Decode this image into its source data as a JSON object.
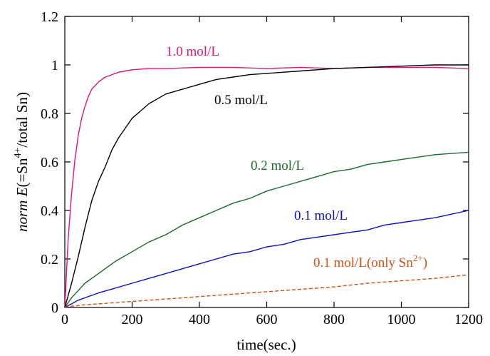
{
  "chart_data": {
    "type": "line",
    "xlabel": "time(sec.)",
    "ylabel_parts": {
      "italic_norm": "norm",
      "italic_E": "E",
      "pre": "(=Sn",
      "sup": "4+",
      "post": "/total Sn)"
    },
    "xlim": [
      0,
      1200
    ],
    "ylim": [
      0,
      1.2
    ],
    "xticks": [
      0,
      200,
      400,
      600,
      800,
      1000,
      1200
    ],
    "yticks": [
      0,
      0.2,
      0.4,
      0.6,
      0.8,
      1,
      1.2
    ],
    "xtick_labels": [
      "0",
      "200",
      "400",
      "600",
      "800",
      "1000",
      "1200"
    ],
    "ytick_labels": [
      "0",
      "0.2",
      "0.4",
      "0.6",
      "0.8",
      "1",
      "1.2"
    ],
    "grid": false,
    "legend": "none (series labelled inline)",
    "series": [
      {
        "name": "1.0 mol/L",
        "color": "#e0147a",
        "dash": "solid",
        "x": [
          0,
          10,
          20,
          30,
          40,
          50,
          60,
          70,
          80,
          100,
          120,
          140,
          160,
          180,
          200,
          250,
          300,
          400,
          500,
          600,
          700,
          800,
          900,
          1000,
          1100,
          1200
        ],
        "y": [
          0,
          0.28,
          0.47,
          0.61,
          0.71,
          0.78,
          0.83,
          0.87,
          0.9,
          0.93,
          0.95,
          0.96,
          0.97,
          0.975,
          0.98,
          0.985,
          0.985,
          0.99,
          0.99,
          0.985,
          0.99,
          0.985,
          0.99,
          0.99,
          0.99,
          0.985
        ]
      },
      {
        "name": "0.5 mol/L",
        "color": "#000000",
        "dash": "solid",
        "x": [
          0,
          20,
          40,
          60,
          80,
          100,
          120,
          140,
          160,
          180,
          200,
          250,
          300,
          350,
          400,
          450,
          500,
          550,
          600,
          650,
          700,
          800,
          900,
          1000,
          1100,
          1200
        ],
        "y": [
          0,
          0.1,
          0.21,
          0.33,
          0.44,
          0.52,
          0.58,
          0.65,
          0.7,
          0.74,
          0.78,
          0.84,
          0.88,
          0.9,
          0.92,
          0.94,
          0.95,
          0.96,
          0.965,
          0.97,
          0.975,
          0.985,
          0.99,
          0.995,
          1.0,
          1.0
        ]
      },
      {
        "name": "0.2 mol/L",
        "color": "#1a6a2a",
        "dash": "solid",
        "x": [
          0,
          20,
          40,
          60,
          80,
          100,
          150,
          200,
          250,
          300,
          350,
          400,
          450,
          500,
          550,
          600,
          650,
          700,
          750,
          800,
          850,
          900,
          950,
          1000,
          1050,
          1100,
          1150,
          1200
        ],
        "y": [
          0,
          0.04,
          0.07,
          0.1,
          0.12,
          0.14,
          0.19,
          0.23,
          0.27,
          0.3,
          0.34,
          0.37,
          0.4,
          0.43,
          0.45,
          0.48,
          0.5,
          0.52,
          0.54,
          0.56,
          0.57,
          0.59,
          0.6,
          0.61,
          0.62,
          0.63,
          0.635,
          0.64
        ]
      },
      {
        "name": "0.1 mol/L",
        "color": "#0a10c8",
        "dash": "solid",
        "x": [
          0,
          20,
          40,
          60,
          80,
          100,
          150,
          200,
          250,
          300,
          350,
          400,
          450,
          500,
          550,
          600,
          650,
          700,
          750,
          800,
          850,
          900,
          950,
          1000,
          1050,
          1100,
          1150,
          1200
        ],
        "y": [
          0,
          0.015,
          0.03,
          0.04,
          0.05,
          0.06,
          0.08,
          0.1,
          0.12,
          0.14,
          0.16,
          0.18,
          0.2,
          0.22,
          0.23,
          0.25,
          0.26,
          0.28,
          0.29,
          0.3,
          0.31,
          0.32,
          0.34,
          0.35,
          0.36,
          0.37,
          0.385,
          0.4
        ]
      },
      {
        "name_parts": {
          "pre": "0.1 mol/L(only Sn",
          "sup": "2+",
          "post": ")"
        },
        "color": "#d25014",
        "dash": "dashed",
        "x": [
          0,
          20,
          50,
          100,
          150,
          200,
          300,
          400,
          500,
          600,
          700,
          800,
          900,
          1000,
          1100,
          1200
        ],
        "y": [
          0,
          0.005,
          0.01,
          0.015,
          0.02,
          0.025,
          0.035,
          0.045,
          0.055,
          0.065,
          0.075,
          0.085,
          0.1,
          0.11,
          0.12,
          0.135
        ]
      }
    ]
  }
}
